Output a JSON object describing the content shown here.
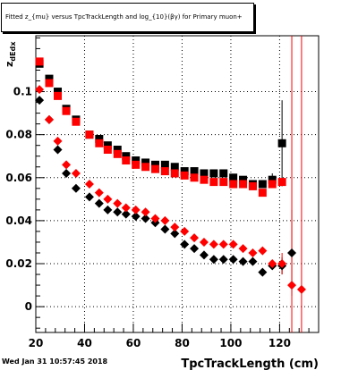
{
  "chart_data": {
    "type": "scatter",
    "title": "Fitted  z_{mu} versus TpcTrackLength and log_{10}(βγ) for Primary muon+",
    "xlabel": "TpcTrackLength (cm)",
    "ylabel": "z_{dEdx}",
    "xlim": [
      20,
      136
    ],
    "ylim": [
      -0.012,
      0.126
    ],
    "x_ticks": [
      20,
      40,
      60,
      80,
      100,
      120
    ],
    "y_ticks": [
      0,
      0.02,
      0.04,
      0.06,
      0.08,
      0.1
    ],
    "x_tick_labels": [
      "20",
      "40",
      "60",
      "80",
      "100",
      "120"
    ],
    "y_tick_labels": [
      "0",
      "0.02",
      "0.04",
      "0.06",
      "0.08",
      "0.1"
    ],
    "grid": true,
    "series": [
      {
        "color": "#000000",
        "marker": "square",
        "points": [
          {
            "x": 21.5,
            "y": 0.113
          },
          {
            "x": 25.5,
            "y": 0.106
          },
          {
            "x": 29,
            "y": 0.1
          },
          {
            "x": 32.5,
            "y": 0.092
          },
          {
            "x": 36.5,
            "y": 0.087
          },
          {
            "x": 42,
            "y": 0.08
          },
          {
            "x": 46,
            "y": 0.078
          },
          {
            "x": 49.5,
            "y": 0.075
          },
          {
            "x": 53.5,
            "y": 0.073
          },
          {
            "x": 57,
            "y": 0.07
          },
          {
            "x": 61,
            "y": 0.068
          },
          {
            "x": 65,
            "y": 0.067
          },
          {
            "x": 69,
            "y": 0.066
          },
          {
            "x": 73,
            "y": 0.066
          },
          {
            "x": 77,
            "y": 0.065
          },
          {
            "x": 81,
            "y": 0.063
          },
          {
            "x": 85,
            "y": 0.063
          },
          {
            "x": 89,
            "y": 0.062
          },
          {
            "x": 93,
            "y": 0.062
          },
          {
            "x": 97,
            "y": 0.062
          },
          {
            "x": 101,
            "y": 0.06
          },
          {
            "x": 105,
            "y": 0.059
          },
          {
            "x": 109,
            "y": 0.057
          },
          {
            "x": 113,
            "y": 0.057
          },
          {
            "x": 117,
            "y": 0.059,
            "err": 0.003
          },
          {
            "x": 121,
            "y": 0.076,
            "err": 0.02
          }
        ]
      },
      {
        "color": "#ff0000",
        "marker": "square",
        "points": [
          {
            "x": 21.5,
            "y": 0.114
          },
          {
            "x": 25.5,
            "y": 0.104
          },
          {
            "x": 29,
            "y": 0.098
          },
          {
            "x": 32.5,
            "y": 0.091
          },
          {
            "x": 36.5,
            "y": 0.086
          },
          {
            "x": 42,
            "y": 0.08
          },
          {
            "x": 46,
            "y": 0.076
          },
          {
            "x": 49.5,
            "y": 0.073
          },
          {
            "x": 53.5,
            "y": 0.071
          },
          {
            "x": 57,
            "y": 0.068
          },
          {
            "x": 61,
            "y": 0.066
          },
          {
            "x": 65,
            "y": 0.065
          },
          {
            "x": 69,
            "y": 0.064
          },
          {
            "x": 73,
            "y": 0.063
          },
          {
            "x": 77,
            "y": 0.062
          },
          {
            "x": 81,
            "y": 0.061
          },
          {
            "x": 85,
            "y": 0.06
          },
          {
            "x": 89,
            "y": 0.059
          },
          {
            "x": 93,
            "y": 0.058
          },
          {
            "x": 97,
            "y": 0.058
          },
          {
            "x": 101,
            "y": 0.057
          },
          {
            "x": 105,
            "y": 0.057
          },
          {
            "x": 109,
            "y": 0.056
          },
          {
            "x": 113,
            "y": 0.053
          },
          {
            "x": 117,
            "y": 0.057
          },
          {
            "x": 121,
            "y": 0.058
          }
        ]
      },
      {
        "color": "#000000",
        "marker": "diamond",
        "points": [
          {
            "x": 21.5,
            "y": 0.096
          },
          {
            "x": 25.5,
            "y": 0.087
          },
          {
            "x": 29,
            "y": 0.073
          },
          {
            "x": 32.5,
            "y": 0.062
          },
          {
            "x": 36.5,
            "y": 0.055
          },
          {
            "x": 42,
            "y": 0.051
          },
          {
            "x": 46,
            "y": 0.048
          },
          {
            "x": 49.5,
            "y": 0.045
          },
          {
            "x": 53.5,
            "y": 0.044
          },
          {
            "x": 57,
            "y": 0.043
          },
          {
            "x": 61,
            "y": 0.042
          },
          {
            "x": 65,
            "y": 0.041
          },
          {
            "x": 69,
            "y": 0.039
          },
          {
            "x": 73,
            "y": 0.036
          },
          {
            "x": 77,
            "y": 0.034
          },
          {
            "x": 81,
            "y": 0.029
          },
          {
            "x": 85,
            "y": 0.027
          },
          {
            "x": 89,
            "y": 0.024
          },
          {
            "x": 93,
            "y": 0.022
          },
          {
            "x": 97,
            "y": 0.022
          },
          {
            "x": 101,
            "y": 0.022
          },
          {
            "x": 105,
            "y": 0.021
          },
          {
            "x": 109,
            "y": 0.021
          },
          {
            "x": 113,
            "y": 0.016
          },
          {
            "x": 117,
            "y": 0.019
          },
          {
            "x": 121,
            "y": 0.019,
            "err": 0.004
          },
          {
            "x": 125,
            "y": 0.025,
            "err": 0.02
          }
        ]
      },
      {
        "color": "#ff0000",
        "marker": "diamond",
        "points": [
          {
            "x": 21.5,
            "y": 0.101
          },
          {
            "x": 25.5,
            "y": 0.087
          },
          {
            "x": 29,
            "y": 0.077
          },
          {
            "x": 32.5,
            "y": 0.066
          },
          {
            "x": 36.5,
            "y": 0.062
          },
          {
            "x": 42,
            "y": 0.057
          },
          {
            "x": 46,
            "y": 0.053
          },
          {
            "x": 49.5,
            "y": 0.05
          },
          {
            "x": 53.5,
            "y": 0.048
          },
          {
            "x": 57,
            "y": 0.046
          },
          {
            "x": 61,
            "y": 0.045
          },
          {
            "x": 65,
            "y": 0.044
          },
          {
            "x": 69,
            "y": 0.041
          },
          {
            "x": 73,
            "y": 0.04
          },
          {
            "x": 77,
            "y": 0.037
          },
          {
            "x": 81,
            "y": 0.035
          },
          {
            "x": 85,
            "y": 0.032
          },
          {
            "x": 89,
            "y": 0.03
          },
          {
            "x": 93,
            "y": 0.029
          },
          {
            "x": 97,
            "y": 0.029
          },
          {
            "x": 101,
            "y": 0.029
          },
          {
            "x": 105,
            "y": 0.027
          },
          {
            "x": 109,
            "y": 0.025
          },
          {
            "x": 113,
            "y": 0.026
          },
          {
            "x": 117,
            "y": 0.02
          },
          {
            "x": 121,
            "y": 0.02,
            "err": 0.005
          },
          {
            "x": 125,
            "y": 0.01,
            "err": 0.3
          },
          {
            "x": 129,
            "y": 0.008,
            "err": 0.3
          }
        ]
      }
    ]
  },
  "footer": {
    "date": "Wed Jan 31 10:57:45 2018"
  }
}
